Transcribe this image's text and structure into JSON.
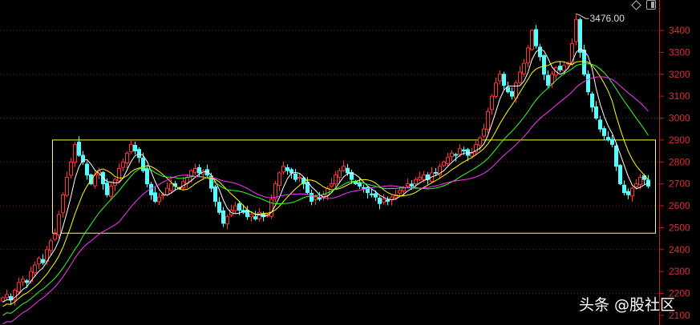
{
  "chart_data": {
    "type": "candlestick",
    "title": "",
    "ylim": [
      2100,
      3480
    ],
    "y_ticks": [
      "3400",
      "3300",
      "3200",
      "3100",
      "3000",
      "2900",
      "2800",
      "2700",
      "2600",
      "2500",
      "2400",
      "2300",
      "2200",
      "2100"
    ],
    "y_tick_values": [
      3400,
      3300,
      3200,
      3100,
      3000,
      2900,
      2800,
      2700,
      2600,
      2500,
      2400,
      2300,
      2200,
      2100
    ],
    "gridlines_at": [
      3400,
      3200,
      3000,
      2800,
      2600,
      2400,
      2200
    ],
    "closes": [
      2180,
      2195,
      2170,
      2215,
      2250,
      2265,
      2250,
      2300,
      2330,
      2360,
      2340,
      2400,
      2440,
      2470,
      2560,
      2650,
      2730,
      2800,
      2880,
      2830,
      2800,
      2740,
      2700,
      2740,
      2760,
      2700,
      2650,
      2690,
      2720,
      2770,
      2800,
      2840,
      2880,
      2850,
      2820,
      2760,
      2700,
      2650,
      2620,
      2640,
      2650,
      2680,
      2700,
      2690,
      2680,
      2710,
      2730,
      2760,
      2770,
      2750,
      2760,
      2740,
      2680,
      2620,
      2570,
      2520,
      2550,
      2580,
      2600,
      2580,
      2570,
      2550,
      2560,
      2540,
      2570,
      2550,
      2560,
      2630,
      2700,
      2750,
      2780,
      2760,
      2750,
      2720,
      2730,
      2700,
      2660,
      2620,
      2640,
      2630,
      2650,
      2680,
      2700,
      2740,
      2760,
      2780,
      2750,
      2720,
      2700,
      2690,
      2680,
      2660,
      2650,
      2640,
      2610,
      2630,
      2620,
      2640,
      2650,
      2670,
      2680,
      2700,
      2690,
      2720,
      2730,
      2740,
      2720,
      2750,
      2750,
      2780,
      2800,
      2820,
      2840,
      2830,
      2860,
      2850,
      2830,
      2840,
      2880,
      2910,
      2950,
      3030,
      3100,
      3160,
      3200,
      3150,
      3120,
      3100,
      3160,
      3210,
      3250,
      3320,
      3400,
      3330,
      3280,
      3200,
      3150,
      3200,
      3230,
      3220,
      3240,
      3250,
      3340,
      3450,
      3300,
      3200,
      3120,
      3050,
      3000,
      2950,
      2920,
      2900,
      2880,
      2780,
      2700,
      2660,
      2650,
      2680,
      2700,
      2730,
      2720,
      2690
    ],
    "peak": {
      "index": 143,
      "value": 3476,
      "label": "3476.00"
    },
    "moving_averages": [
      {
        "period": 5,
        "color": "#ffffff"
      },
      {
        "period": 10,
        "color": "#ffff00"
      },
      {
        "period": 20,
        "color": "#33ff33"
      },
      {
        "period": 30,
        "color": "#ff33ff"
      }
    ],
    "range_box": {
      "top": 2900,
      "bottom": 2475,
      "color": "#ffff33"
    },
    "colors": {
      "up": "#ff3333",
      "down": "#54ffff",
      "axis": "#cc2020",
      "grid": "#802020"
    }
  },
  "watermark": "头条 @股社区"
}
